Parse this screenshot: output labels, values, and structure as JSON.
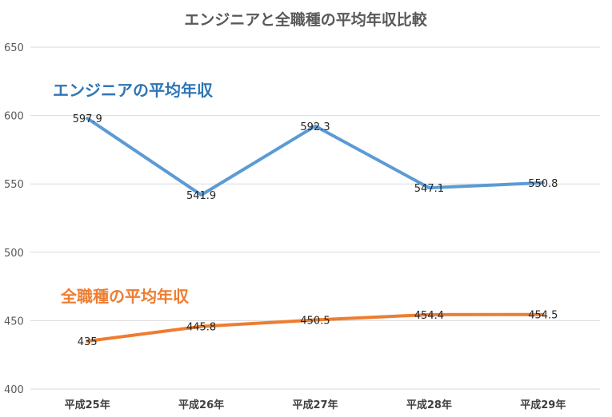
{
  "chart_data": {
    "type": "line",
    "title": "エンジニアと全職種の平均年収比較",
    "categories": [
      "平成25年",
      "平成26年",
      "平成27年",
      "平成28年",
      "平成29年"
    ],
    "ylim": [
      400,
      650
    ],
    "yticks": [
      "400",
      "450",
      "500",
      "550",
      "600",
      "650"
    ],
    "grid": true,
    "series": [
      {
        "name": "エンジニアの平均年収",
        "color": "#5b9bd5",
        "values": [
          597.9,
          541.9,
          592.3,
          547.1,
          550.8
        ],
        "labels": [
          "597.9",
          "541.9",
          "592.3",
          "547.1",
          "550.8"
        ]
      },
      {
        "name": "全職種の平均年収",
        "color": "#ed7d31",
        "values": [
          435,
          445.8,
          450.5,
          454.4,
          454.5
        ],
        "labels": [
          "435",
          "445.8",
          "450.5",
          "454.4",
          "454.5"
        ]
      }
    ]
  }
}
